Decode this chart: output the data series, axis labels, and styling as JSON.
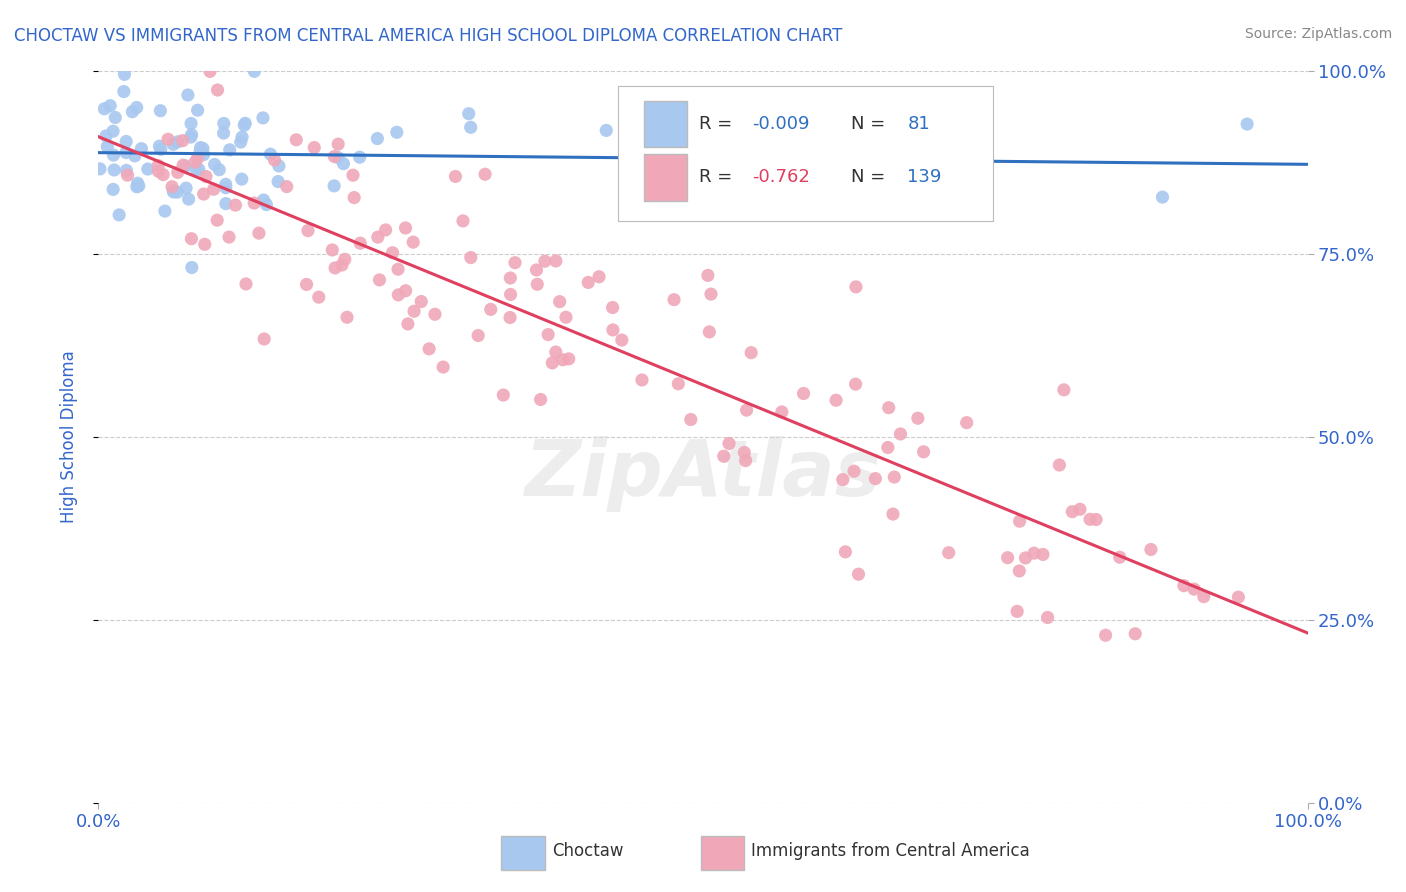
{
  "title": "CHOCTAW VS IMMIGRANTS FROM CENTRAL AMERICA HIGH SCHOOL DIPLOMA CORRELATION CHART",
  "source": "Source: ZipAtlas.com",
  "ylabel": "High School Diploma",
  "blue_R": -0.009,
  "blue_N": 81,
  "pink_R": -0.762,
  "pink_N": 139,
  "blue_color": "#a8c8f0",
  "pink_color": "#f0a8b8",
  "blue_line_color": "#3070c0",
  "pink_line_color": "#e04060",
  "title_color": "#3366cc",
  "axis_label_color": "#3366cc",
  "tick_label_color": "#3366cc",
  "grid_color": "#cccccc",
  "background_color": "#ffffff",
  "legend_labels": [
    "Choctaw",
    "Immigrants from Central America"
  ],
  "xlim": [
    0,
    1
  ],
  "ylim": [
    0,
    1
  ],
  "ytick_positions": [
    0.0,
    0.25,
    0.5,
    0.75,
    1.0
  ],
  "ytick_labels": [
    "0.0%",
    "25.0%",
    "50.0%",
    "75.0%",
    "100.0%"
  ],
  "xtick_positions": [
    0.0,
    1.0
  ],
  "xtick_labels": [
    "0.0%",
    "100.0%"
  ]
}
